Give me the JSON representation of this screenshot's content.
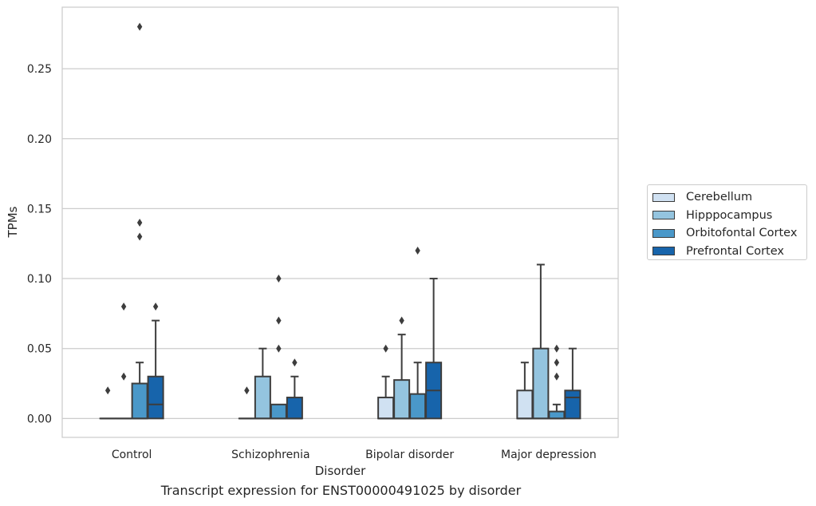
{
  "chart_data": {
    "type": "box",
    "title": "",
    "caption": "Transcript expression for ENST00000491025 by disorder",
    "xlabel": "Disorder",
    "ylabel": "TPMs",
    "ylim": [
      -0.0135,
      0.294
    ],
    "yticks": [
      "0.00",
      "0.05",
      "0.10",
      "0.15",
      "0.20",
      "0.25"
    ],
    "yticks_values": [
      0.0,
      0.05,
      0.1,
      0.15,
      0.2,
      0.25
    ],
    "categories": [
      "Control",
      "Schizophrenia",
      "Bipolar disorder",
      "Major depression"
    ],
    "grid": "horizontal",
    "legend_position": "right",
    "series": [
      {
        "name": "Cerebellum",
        "color": "#d0e1f2",
        "boxes": [
          {
            "q1": 0.0,
            "median": 0.0,
            "q3": 0.0,
            "whisker_low": 0.0,
            "whisker_high": 0.0,
            "outliers": [
              0.02
            ]
          },
          {
            "q1": 0.0,
            "median": 0.0,
            "q3": 0.0,
            "whisker_low": 0.0,
            "whisker_high": 0.0,
            "outliers": [
              0.02
            ]
          },
          {
            "q1": 0.0,
            "median": 0.0,
            "q3": 0.015,
            "whisker_low": 0.0,
            "whisker_high": 0.03,
            "outliers": [
              0.05
            ]
          },
          {
            "q1": 0.0,
            "median": 0.0,
            "q3": 0.02,
            "whisker_low": 0.0,
            "whisker_high": 0.04,
            "outliers": []
          }
        ]
      },
      {
        "name": "Hipppocampus",
        "color": "#94c4df",
        "boxes": [
          {
            "q1": 0.0,
            "median": 0.0,
            "q3": 0.0,
            "whisker_low": 0.0,
            "whisker_high": 0.0,
            "outliers": [
              0.03,
              0.08
            ]
          },
          {
            "q1": 0.0,
            "median": 0.0,
            "q3": 0.03,
            "whisker_low": 0.0,
            "whisker_high": 0.05,
            "outliers": []
          },
          {
            "q1": 0.0,
            "median": 0.0,
            "q3": 0.0275,
            "whisker_low": 0.0,
            "whisker_high": 0.06,
            "outliers": [
              0.07
            ]
          },
          {
            "q1": 0.0,
            "median": 0.0,
            "q3": 0.05,
            "whisker_low": 0.0,
            "whisker_high": 0.11,
            "outliers": []
          }
        ]
      },
      {
        "name": "Orbitofontal Cortex",
        "color": "#4a98c9",
        "boxes": [
          {
            "q1": 0.0,
            "median": 0.0,
            "q3": 0.025,
            "whisker_low": 0.0,
            "whisker_high": 0.04,
            "outliers": [
              0.13,
              0.14,
              0.28
            ]
          },
          {
            "q1": 0.0,
            "median": 0.0,
            "q3": 0.01,
            "whisker_low": 0.0,
            "whisker_high": 0.01,
            "outliers": [
              0.05,
              0.07,
              0.1
            ]
          },
          {
            "q1": 0.0,
            "median": 0.0,
            "q3": 0.0175,
            "whisker_low": 0.0,
            "whisker_high": 0.04,
            "outliers": [
              0.12
            ]
          },
          {
            "q1": 0.0,
            "median": 0.0,
            "q3": 0.005,
            "whisker_low": 0.0,
            "whisker_high": 0.01,
            "outliers": [
              0.03,
              0.04,
              0.05
            ]
          }
        ]
      },
      {
        "name": "Prefrontal Cortex",
        "color": "#1764ab",
        "boxes": [
          {
            "q1": 0.0,
            "median": 0.01,
            "q3": 0.03,
            "whisker_low": 0.0,
            "whisker_high": 0.07,
            "outliers": [
              0.08
            ]
          },
          {
            "q1": 0.0,
            "median": 0.0,
            "q3": 0.015,
            "whisker_low": 0.0,
            "whisker_high": 0.03,
            "outliers": [
              0.04
            ]
          },
          {
            "q1": 0.0,
            "median": 0.02,
            "q3": 0.04,
            "whisker_low": 0.0,
            "whisker_high": 0.1,
            "outliers": []
          },
          {
            "q1": 0.0,
            "median": 0.015,
            "q3": 0.02,
            "whisker_low": 0.0,
            "whisker_high": 0.05,
            "outliers": []
          }
        ]
      }
    ]
  }
}
